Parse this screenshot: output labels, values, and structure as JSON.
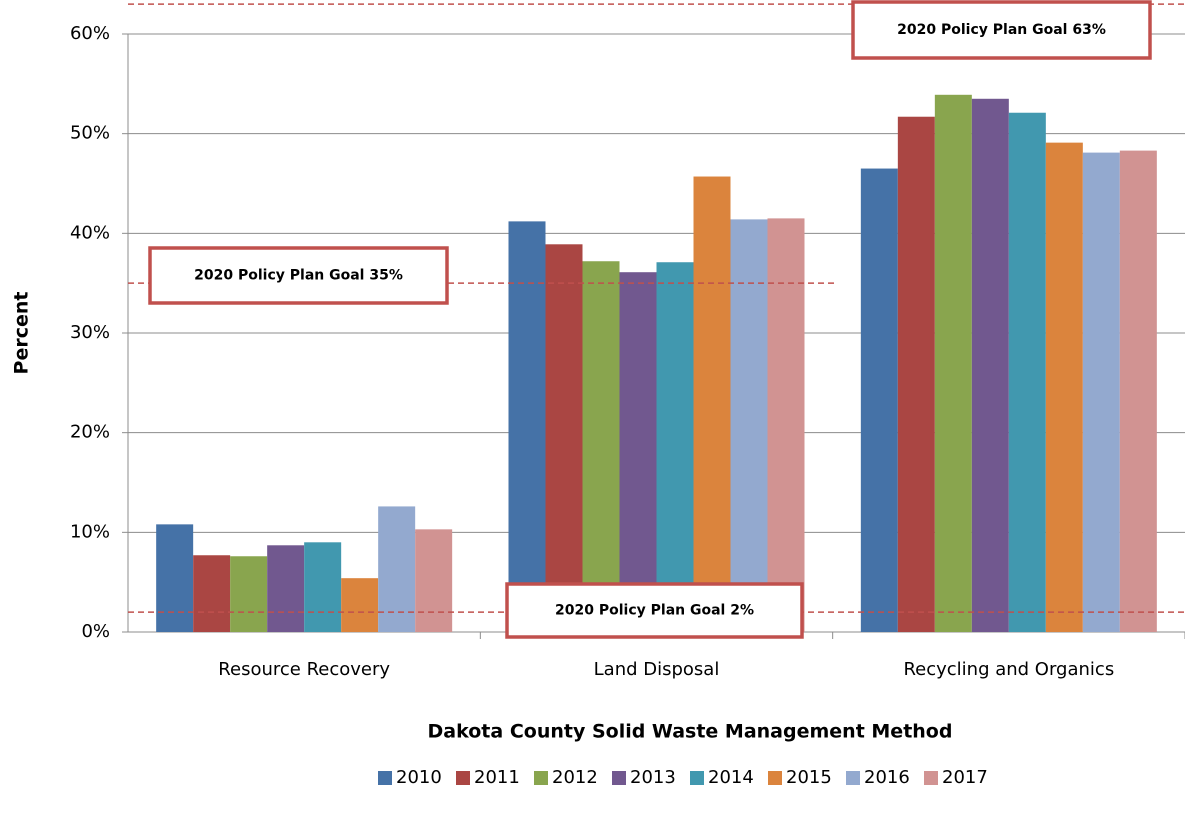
{
  "chart_data": {
    "type": "bar",
    "xlabel": "Dakota County Solid Waste Management Method",
    "ylabel": "Percent",
    "categories": [
      "Resource Recovery",
      "Land Disposal",
      "Recycling and Organics"
    ],
    "series": [
      {
        "name": "2010",
        "color": "#4572a7",
        "values": [
          10.8,
          41.2,
          46.5
        ]
      },
      {
        "name": "2011",
        "color": "#aa4643",
        "values": [
          7.7,
          38.9,
          51.7
        ]
      },
      {
        "name": "2012",
        "color": "#89a54e",
        "values": [
          7.6,
          37.2,
          53.9
        ]
      },
      {
        "name": "2013",
        "color": "#71588f",
        "values": [
          8.7,
          36.1,
          53.5
        ]
      },
      {
        "name": "2014",
        "color": "#4198af",
        "values": [
          9.0,
          37.1,
          52.1
        ]
      },
      {
        "name": "2015",
        "color": "#db843d",
        "values": [
          5.4,
          45.7,
          49.1
        ]
      },
      {
        "name": "2016",
        "color": "#93a9cf",
        "values": [
          12.6,
          41.4,
          48.1
        ]
      },
      {
        "name": "2017",
        "color": "#d19392",
        "values": [
          10.3,
          41.5,
          48.3
        ]
      }
    ],
    "ylim": [
      0,
      60
    ],
    "yticks": [
      {
        "value": 0,
        "label": "0%"
      },
      {
        "value": 10,
        "label": "10%"
      },
      {
        "value": 20,
        "label": "20%"
      },
      {
        "value": 30,
        "label": "30%"
      },
      {
        "value": 40,
        "label": "40%"
      },
      {
        "value": 50,
        "label": "50%"
      },
      {
        "value": 60,
        "label": "60%"
      }
    ],
    "grid": true,
    "legend": "bottom",
    "annotations": [
      {
        "text": "2020 Policy Plan Goal 63%",
        "value": 63
      },
      {
        "text": "2020 Policy Plan Goal 35%",
        "value": 35
      },
      {
        "text": "2020 Policy Plan Goal 2%",
        "value": 2
      }
    ]
  }
}
